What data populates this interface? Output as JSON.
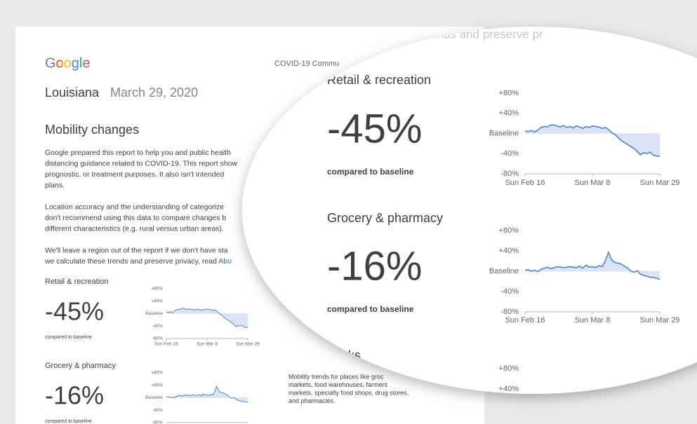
{
  "header": {
    "logo": "Google",
    "report": "COVID-19 Commu",
    "region": "Louisiana",
    "date": "March 29, 2020"
  },
  "section_title": "Mobility changes",
  "paragraphs": [
    {
      "lines": [
        "Google prepared this report to help you and public health",
        "distancing guidance related to COVID-19. This report show",
        "prognostic, or treatment purposes. It also isn't intended",
        "plans."
      ]
    },
    {
      "lines": [
        "Location accuracy and the understanding of categorize",
        "don't recommend using this data to compare changes b",
        "different characteristics (e.g. rural versus urban areas)."
      ]
    },
    {
      "lines": [
        "We'll leave a region out of the report if we don't have sta",
        "we calculate these trends and preserve privacy, read"
      ],
      "link": "Abo"
    }
  ],
  "magnifier_fragment": "se trends and preserve pr",
  "chart_data": [
    {
      "type": "line",
      "title": "Retail & recreation",
      "change": "-45%",
      "caption": "compared to baseline",
      "color": "#4a86d4",
      "categories": [
        "Sun Feb 16",
        null,
        null,
        null,
        null,
        null,
        null,
        null,
        null,
        null,
        null,
        null,
        null,
        null,
        null,
        null,
        null,
        null,
        null,
        null,
        null,
        "Sun Mar 8",
        null,
        null,
        null,
        null,
        null,
        null,
        null,
        null,
        null,
        null,
        null,
        null,
        null,
        null,
        null,
        null,
        null,
        null,
        null,
        null,
        "Sun Mar 29"
      ],
      "values": [
        5,
        4,
        6,
        3,
        7,
        12,
        14,
        13,
        17,
        17,
        15,
        13,
        16,
        12,
        14,
        11,
        15,
        13,
        10,
        14,
        12,
        15,
        14,
        13,
        10,
        12,
        8,
        2,
        -2,
        -8,
        -14,
        -18,
        -22,
        -26,
        -30,
        -36,
        -42,
        -38,
        -40,
        -37,
        -43,
        -45,
        -45
      ],
      "ylim": [
        -80,
        80
      ],
      "yticks": [
        {
          "value": 80,
          "label": "+80%"
        },
        {
          "value": 40,
          "label": "+40%"
        },
        {
          "value": 0,
          "label": "Baseline"
        },
        {
          "value": -40,
          "label": "-40%"
        },
        {
          "value": -80,
          "label": "-80%"
        }
      ]
    },
    {
      "type": "line",
      "title": "Grocery & pharmacy",
      "change": "-16%",
      "caption": "compared to baseline",
      "color": "#4a86d4",
      "description": [
        "Mobility trends for places like groc",
        "markets, food warehouses, farmers",
        "markets, specialty food shops, drug stores,",
        "and pharmacies."
      ],
      "categories": [
        "Sun Feb 16",
        null,
        null,
        null,
        null,
        null,
        null,
        null,
        null,
        null,
        null,
        null,
        null,
        null,
        null,
        null,
        null,
        null,
        null,
        null,
        null,
        "Sun Mar 8",
        null,
        null,
        null,
        null,
        null,
        null,
        null,
        null,
        null,
        null,
        null,
        null,
        null,
        null,
        null,
        null,
        null,
        null,
        null,
        null,
        "Sun Mar 29"
      ],
      "values": [
        2,
        3,
        0,
        2,
        -1,
        4,
        6,
        8,
        5,
        7,
        9,
        8,
        7,
        8,
        9,
        8,
        7,
        10,
        6,
        12,
        8,
        9,
        7,
        11,
        9,
        20,
        37,
        22,
        17,
        16,
        14,
        10,
        6,
        0,
        -2,
        1,
        -6,
        -8,
        -10,
        -12,
        -12,
        -14,
        -16
      ],
      "ylim": [
        -80,
        80
      ],
      "yticks": [
        {
          "value": 80,
          "label": "+80%"
        },
        {
          "value": 40,
          "label": "+40%"
        },
        {
          "value": 0,
          "label": "Baseline"
        },
        {
          "value": -40,
          "label": "-40%"
        },
        {
          "value": -80,
          "label": "-80%"
        }
      ]
    }
  ],
  "parks": {
    "title": "rks",
    "yticks": [
      {
        "value": 80,
        "label": "+80%"
      },
      {
        "value": 40,
        "label": "+40%"
      }
    ]
  }
}
